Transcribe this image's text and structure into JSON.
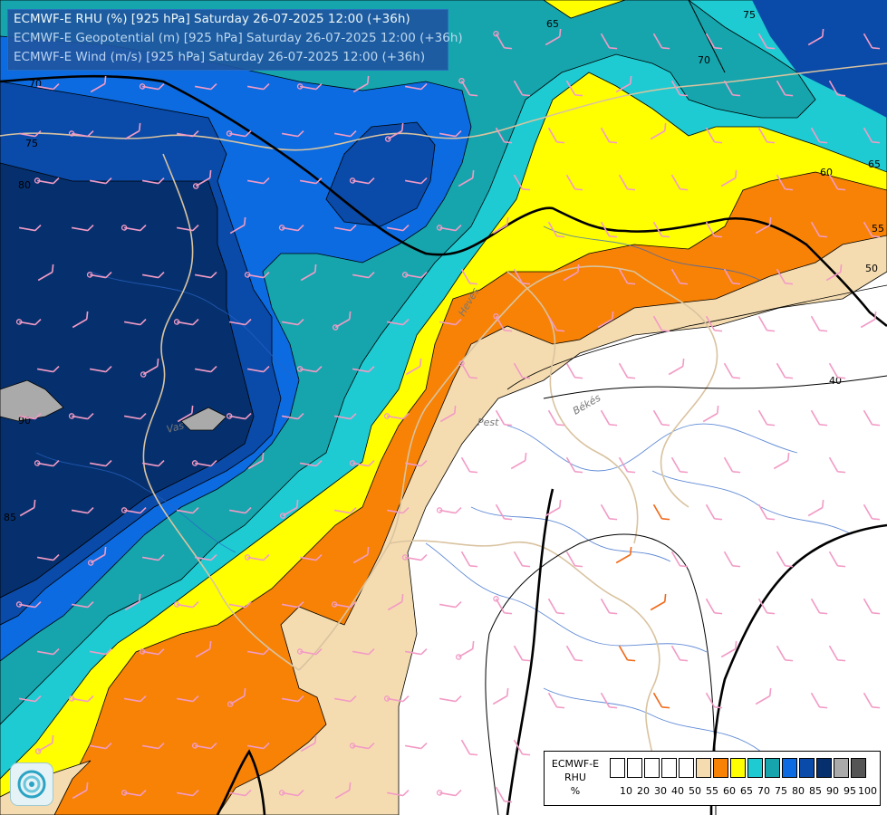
{
  "header": {
    "line1": "ECMWF-E RHU (%) [925 hPa] Saturday 26-07-2025 12:00 (+36h)",
    "line2": "ECMWF-E Geopotential (m) [925 hPa] Saturday 26-07-2025 12:00 (+36h)",
    "line3": "ECMWF-E Wind (m/s) [925 hPa] Saturday 26-07-2025 12:00 (+36h)"
  },
  "contour_labels": {
    "c65a": "65",
    "c75a": "75",
    "c70a": "70",
    "c70b": "70",
    "c75b": "75",
    "c80": "80",
    "c60": "60",
    "c65b": "65",
    "c55": "55",
    "c50": "50",
    "c40": "40",
    "c90": "90",
    "c85": "85"
  },
  "place_labels": {
    "heves": "Heves",
    "pest": "Pest",
    "bekes": "Békés",
    "vas": "Vas"
  },
  "legend": {
    "title_line1": "ECMWF-E",
    "title_line2": "RHU",
    "title_line3": "%",
    "bins": [
      {
        "label": "10",
        "color": "#ffffff"
      },
      {
        "label": "20",
        "color": "#ffffff"
      },
      {
        "label": "30",
        "color": "#ffffff"
      },
      {
        "label": "40",
        "color": "#ffffff"
      },
      {
        "label": "50",
        "color": "#ffffff"
      },
      {
        "label": "55",
        "color": "#f5dcb0"
      },
      {
        "label": "60",
        "color": "#f78205"
      },
      {
        "label": "65",
        "color": "#ffff00"
      },
      {
        "label": "70",
        "color": "#1ecbd2"
      },
      {
        "label": "75",
        "color": "#16a5ad"
      },
      {
        "label": "80",
        "color": "#0c6be0"
      },
      {
        "label": "85",
        "color": "#0a4aa8"
      },
      {
        "label": "90",
        "color": "#06306d"
      },
      {
        "label": "95",
        "color": "#aaaaaa"
      },
      {
        "label": "100",
        "color": "#555555"
      }
    ]
  },
  "colors": {
    "rhu_55": "#f5dcb0",
    "rhu_60": "#f78205",
    "rhu_65": "#ffff00",
    "rhu_70": "#1ecbd2",
    "rhu_75": "#16a5ad",
    "rhu_80": "#0c6be0",
    "rhu_85": "#0a4aa8",
    "rhu_90": "#06306d",
    "rhu_95": "#aaaaaa",
    "wind_barb": "#f29bc6",
    "wind_barb_strong": "#f06a1a",
    "rivers": "#2b64c8",
    "borders": "#d9c3a0",
    "geopotential": "#000000"
  },
  "icons": {
    "logo": "cloud-swirl-logo-icon"
  }
}
